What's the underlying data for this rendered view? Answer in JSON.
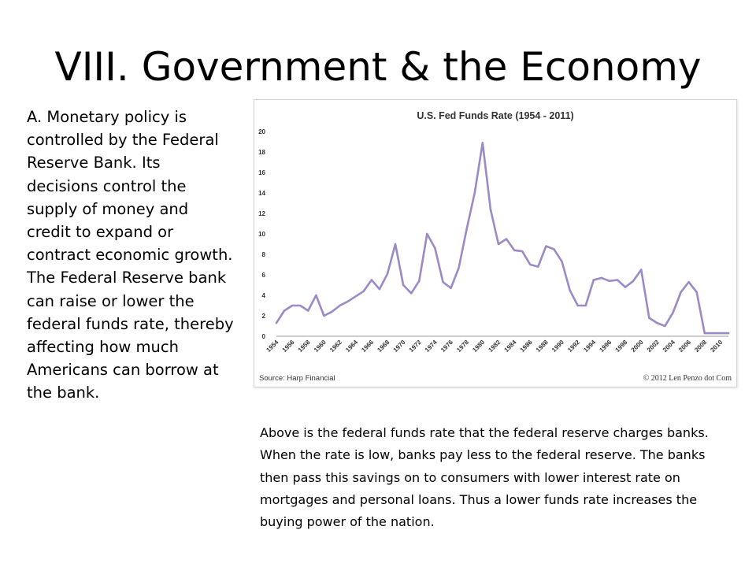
{
  "slide": {
    "title": "VIII. Government & the Economy",
    "body": "A. Monetary policy is controlled by the Federal Reserve Bank. Its decisions control the supply of money and credit to expand or contract economic growth.  The Federal Reserve bank can raise or lower the federal funds rate, thereby affecting how much Americans can borrow at the bank.",
    "caption": "Above is the federal funds rate that the federal reserve charges banks.  When the rate is low, banks pay less to the federal reserve.  The banks then pass this savings on to consumers with lower interest rate on mortgages and personal loans.  Thus a lower funds rate increases the buying power of the nation."
  },
  "chart_data": {
    "type": "line",
    "title": "U.S. Fed Funds Rate (1954 - 2011)",
    "source": "Source: Harp Financial",
    "copyright": "© 2012 Len Penzo dot Com",
    "xlabel": "",
    "ylabel": "",
    "ylim": [
      0,
      20
    ],
    "yticks": [
      0,
      2,
      4,
      6,
      8,
      10,
      12,
      14,
      16,
      18,
      20
    ],
    "xticks": [
      1954,
      1956,
      1958,
      1960,
      1962,
      1964,
      1966,
      1968,
      1970,
      1972,
      1974,
      1976,
      1978,
      1980,
      1982,
      1984,
      1986,
      1988,
      1990,
      1992,
      1994,
      1996,
      1998,
      2000,
      2002,
      2004,
      2006,
      2008,
      2010
    ],
    "grid": false,
    "line_color": "#9b8ac4",
    "x": [
      1954,
      1955,
      1956,
      1957,
      1958,
      1959,
      1960,
      1961,
      1962,
      1963,
      1964,
      1965,
      1966,
      1967,
      1968,
      1969,
      1970,
      1971,
      1972,
      1973,
      1974,
      1975,
      1976,
      1977,
      1978,
      1979,
      1980,
      1981,
      1982,
      1983,
      1984,
      1985,
      1986,
      1987,
      1988,
      1989,
      1990,
      1991,
      1992,
      1993,
      1994,
      1995,
      1996,
      1997,
      1998,
      1999,
      2000,
      2001,
      2002,
      2003,
      2004,
      2005,
      2006,
      2007,
      2008,
      2009,
      2010,
      2011
    ],
    "values": [
      1.3,
      2.5,
      3.0,
      3.0,
      2.5,
      4.0,
      2.0,
      2.4,
      3.0,
      3.4,
      3.9,
      4.4,
      5.5,
      4.6,
      6.1,
      9.0,
      5.0,
      4.2,
      5.4,
      10.0,
      8.6,
      5.3,
      4.7,
      6.7,
      10.5,
      14.0,
      18.9,
      12.4,
      9.0,
      9.5,
      8.4,
      8.3,
      7.0,
      6.8,
      8.8,
      8.5,
      7.3,
      4.5,
      3.0,
      3.0,
      5.5,
      5.7,
      5.4,
      5.5,
      4.8,
      5.4,
      6.5,
      1.8,
      1.3,
      1.0,
      2.3,
      4.3,
      5.3,
      4.3,
      0.3,
      0.3,
      0.3,
      0.3
    ]
  }
}
